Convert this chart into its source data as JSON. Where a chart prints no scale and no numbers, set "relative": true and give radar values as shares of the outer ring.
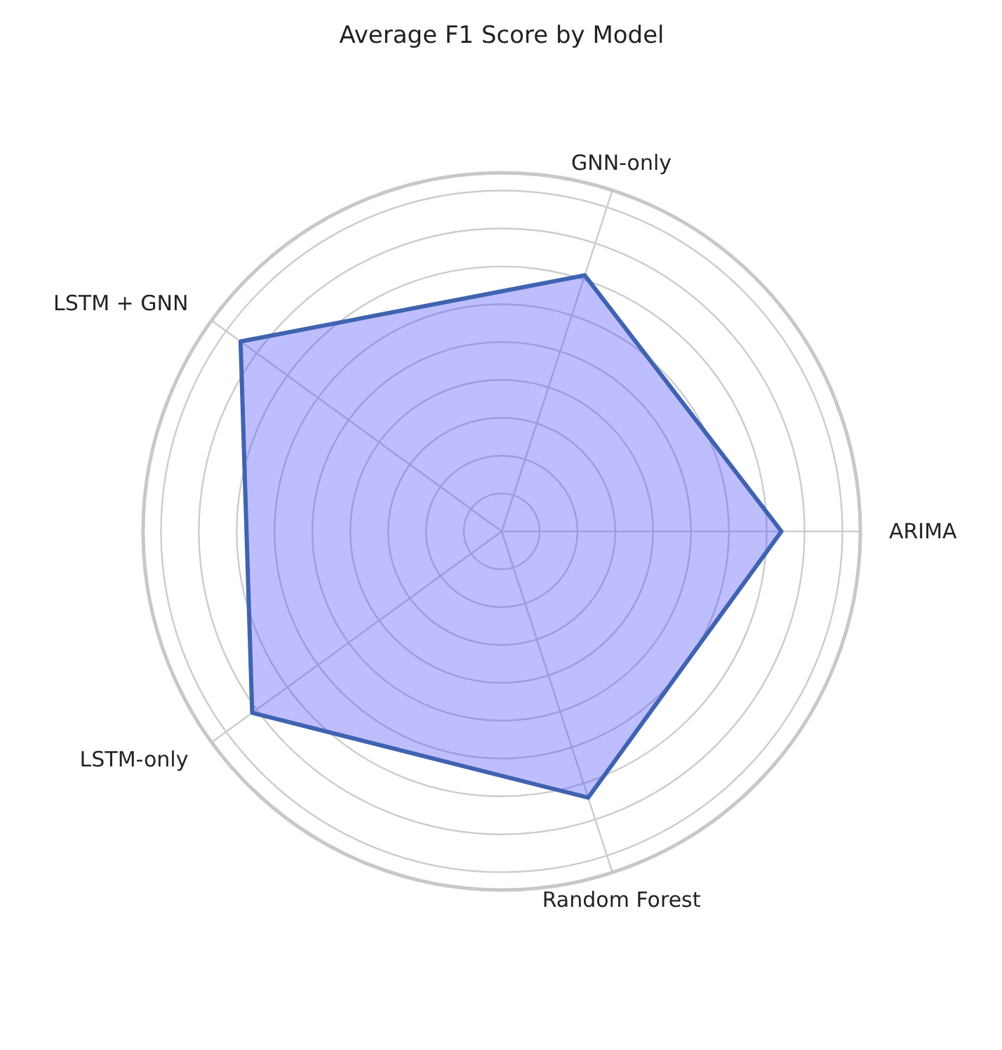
{
  "chart_data": {
    "type": "radar",
    "title": "Average F1 Score by Model",
    "relative": true,
    "grid": true,
    "categories": [
      "GNN-only",
      "ARIMA",
      "Random Forest",
      "LSTM-only",
      "LSTM + GNN"
    ],
    "series": [
      {
        "color": "#3f63b0",
        "values": [
          0.75,
          0.78,
          0.78,
          0.86,
          0.9
        ]
      }
    ]
  }
}
